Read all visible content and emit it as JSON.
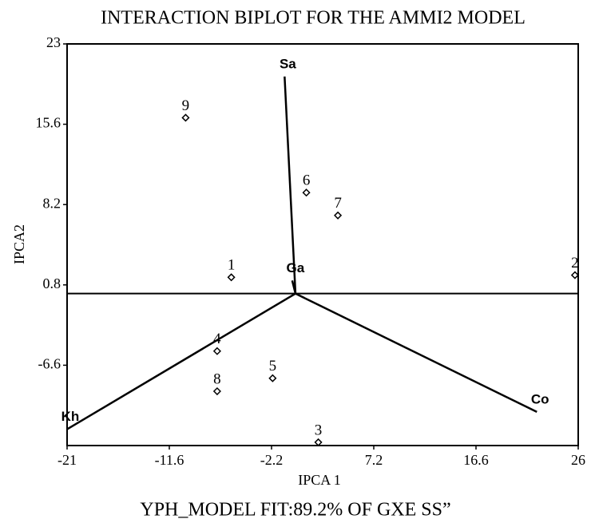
{
  "chart_data": {
    "type": "biplot",
    "title": "INTERACTION BIPLOT FOR THE AMMI2 MODEL",
    "footer": "YPH_MODEL FIT:89.2% OF GXE SS”",
    "x_label": "IPCA 1",
    "y_label": "IPCA2",
    "xlim": [
      -21,
      26
    ],
    "ylim": [
      -14,
      23
    ],
    "xticks": [
      -21,
      -11.6,
      -2.2,
      7.2,
      16.6,
      26
    ],
    "yticks": [
      23,
      15.6,
      8.2,
      0.8,
      -6.6
    ],
    "hline": 0,
    "points": {
      "labels": [
        "1",
        "2",
        "3",
        "4",
        "5",
        "6",
        "7",
        "8",
        "9"
      ],
      "x": [
        -5.9,
        25.7,
        2.1,
        -7.2,
        -2.1,
        1.0,
        3.9,
        -7.2,
        -10.1
      ],
      "y": [
        1.5,
        1.7,
        -13.7,
        -5.3,
        -7.8,
        9.3,
        7.2,
        -9.0,
        16.2
      ]
    },
    "vectors": {
      "labels": [
        "Sa",
        "Ga",
        "Kh",
        "Co"
      ],
      "x": [
        -1.0,
        -0.3,
        -21,
        22.2
      ],
      "y": [
        20.0,
        1.2,
        -12.5,
        -10.9
      ]
    }
  }
}
